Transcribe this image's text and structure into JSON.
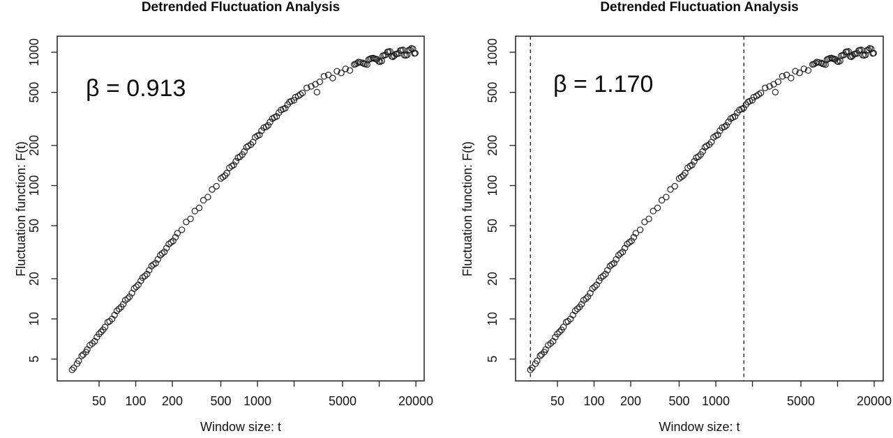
{
  "page": {
    "background": "#ffffff",
    "text_color": "#111111"
  },
  "chart_data": [
    {
      "type": "scatter",
      "title": "Detrended Fluctuation Analysis",
      "xlabel": "Window size: t",
      "ylabel": "Fluctuation function: F(t)",
      "annotation": "β = 0.913",
      "x_scale": "log",
      "y_scale": "log",
      "xlim": [
        23,
        24000
      ],
      "ylim": [
        3.4,
        1320
      ],
      "x_ticks_labeled": [
        50,
        100,
        200,
        500,
        1000,
        5000,
        20000
      ],
      "x_ticks_unlabeled": [
        2000,
        10000
      ],
      "y_ticks_labeled": [
        5,
        10,
        20,
        50,
        100,
        200,
        500,
        1000
      ],
      "grid": false,
      "legend": "none",
      "marker": "open-circle",
      "marker_color": "#1a1a1a",
      "points": [
        [
          30,
          4.15
        ],
        [
          31,
          4.3
        ],
        [
          33,
          4.62
        ],
        [
          34,
          4.85
        ],
        [
          36,
          5.28
        ],
        [
          37,
          5.4
        ],
        [
          39,
          5.65
        ],
        [
          40,
          5.9
        ],
        [
          42,
          6.35
        ],
        [
          44,
          6.55
        ],
        [
          46,
          6.8
        ],
        [
          48,
          7.3
        ],
        [
          50,
          7.72
        ],
        [
          52,
          8.0
        ],
        [
          54,
          8.28
        ],
        [
          56,
          8.7
        ],
        [
          59,
          9.45
        ],
        [
          61,
          9.6
        ],
        [
          64,
          10.0
        ],
        [
          67,
          10.7
        ],
        [
          70,
          11.5
        ],
        [
          73,
          11.9
        ],
        [
          76,
          12.3
        ],
        [
          79,
          12.9
        ],
        [
          82,
          13.8
        ],
        [
          86,
          14.2
        ],
        [
          89,
          14.7
        ],
        [
          93,
          15.6
        ],
        [
          97,
          16.9
        ],
        [
          101,
          17.4
        ],
        [
          105,
          18.0
        ],
        [
          110,
          19.3
        ],
        [
          114,
          20.4
        ],
        [
          119,
          21.0
        ],
        [
          124,
          21.7
        ],
        [
          129,
          23.2
        ],
        [
          135,
          24.9
        ],
        [
          140,
          25.6
        ],
        [
          146,
          26.2
        ],
        [
          152,
          28.0
        ],
        [
          159,
          30.1
        ],
        [
          165,
          31.0
        ],
        [
          172,
          31.8
        ],
        [
          179,
          34.0
        ],
        [
          187,
          36.4
        ],
        [
          195,
          37.5
        ],
        [
          203,
          38.5
        ],
        [
          212,
          41.0
        ],
        [
          220,
          43.9
        ],
        [
          239,
          46.6
        ],
        [
          260,
          53.3
        ],
        [
          282,
          56.3
        ],
        [
          306,
          64.4
        ],
        [
          332,
          68.0
        ],
        [
          360,
          77.6
        ],
        [
          391,
          82.0
        ],
        [
          424,
          93.5
        ],
        [
          460,
          98.9
        ],
        [
          500,
          113
        ],
        [
          520,
          116
        ],
        [
          542,
          119
        ],
        [
          560,
          124
        ],
        [
          588,
          136
        ],
        [
          615,
          140
        ],
        [
          638,
          143
        ],
        [
          665,
          152
        ],
        [
          692,
          162
        ],
        [
          720,
          165
        ],
        [
          751,
          171
        ],
        [
          780,
          180
        ],
        [
          814,
          194
        ],
        [
          840,
          198
        ],
        [
          883,
          203
        ],
        [
          920,
          212
        ],
        [
          958,
          230
        ],
        [
          1000,
          236
        ],
        [
          1039,
          240
        ],
        [
          1080,
          258
        ],
        [
          1127,
          272
        ],
        [
          1180,
          276
        ],
        [
          1223,
          283
        ],
        [
          1270,
          300
        ],
        [
          1326,
          318
        ],
        [
          1380,
          325
        ],
        [
          1439,
          330
        ],
        [
          1500,
          352
        ],
        [
          1561,
          369
        ],
        [
          1630,
          375
        ],
        [
          1693,
          381
        ],
        [
          1770,
          405
        ],
        [
          1837,
          423
        ],
        [
          1900,
          430
        ],
        [
          1993,
          436
        ],
        [
          2050,
          460
        ],
        [
          2162,
          470
        ],
        [
          2250,
          482
        ],
        [
          2345,
          495
        ],
        [
          2544,
          540
        ],
        [
          2760,
          555
        ],
        [
          2994,
          575
        ],
        [
          3080,
          502
        ],
        [
          3248,
          600
        ],
        [
          3523,
          660
        ],
        [
          3822,
          676
        ],
        [
          4146,
          640
        ],
        [
          4498,
          720
        ],
        [
          4879,
          700
        ],
        [
          5293,
          750
        ],
        [
          5742,
          730
        ],
        [
          6229,
          810
        ],
        [
          6400,
          815
        ],
        [
          6600,
          828
        ],
        [
          6757,
          845
        ],
        [
          7000,
          838
        ],
        [
          7330,
          832
        ],
        [
          7500,
          820
        ],
        [
          7700,
          815
        ],
        [
          7952,
          807
        ],
        [
          8200,
          880
        ],
        [
          8400,
          890
        ],
        [
          8626,
          900
        ],
        [
          8900,
          905
        ],
        [
          9100,
          896
        ],
        [
          9358,
          890
        ],
        [
          9600,
          885
        ],
        [
          9900,
          855
        ],
        [
          10152,
          848
        ],
        [
          10500,
          860
        ],
        [
          10700,
          942
        ],
        [
          11013,
          949
        ],
        [
          11300,
          955
        ],
        [
          11700,
          1005
        ],
        [
          11947,
          1010
        ],
        [
          12300,
          1015
        ],
        [
          12700,
          930
        ],
        [
          12960,
          924
        ],
        [
          13300,
          940
        ],
        [
          13700,
          968
        ],
        [
          14059,
          974
        ],
        [
          14500,
          980
        ],
        [
          14900,
          1030
        ],
        [
          15252,
          1036
        ],
        [
          15700,
          1040
        ],
        [
          16100,
          950
        ],
        [
          16545,
          946
        ],
        [
          17000,
          955
        ],
        [
          17500,
          1035
        ],
        [
          17948,
          1040
        ],
        [
          18400,
          1070
        ],
        [
          18900,
          1060
        ],
        [
          19471,
          980
        ],
        [
          19800,
          985
        ]
      ]
    },
    {
      "type": "scatter",
      "title": "Detrended Fluctuation Analysis",
      "xlabel": "Window size: t",
      "ylabel": "Fluctuation function: F(t)",
      "annotation": "β = 1.170",
      "x_scale": "log",
      "y_scale": "log",
      "xlim": [
        23,
        24000
      ],
      "ylim": [
        3.4,
        1320
      ],
      "x_ticks_labeled": [
        50,
        100,
        200,
        500,
        1000,
        5000,
        20000
      ],
      "x_ticks_unlabeled": [
        2000,
        10000
      ],
      "y_ticks_labeled": [
        5,
        10,
        20,
        50,
        100,
        200,
        500,
        1000
      ],
      "grid": false,
      "legend": "none",
      "marker": "open-circle",
      "marker_color": "#1a1a1a",
      "dashed_vlines": [
        30,
        1700
      ],
      "points_same_as_left_panel": true
    }
  ]
}
